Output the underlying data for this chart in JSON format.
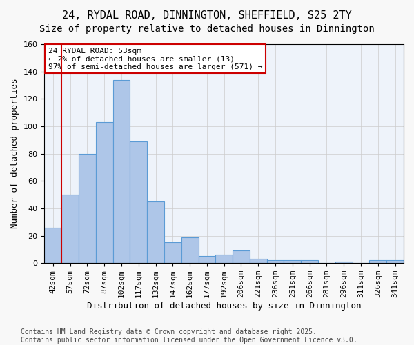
{
  "title_line1": "24, RYDAL ROAD, DINNINGTON, SHEFFIELD, S25 2TY",
  "title_line2": "Size of property relative to detached houses in Dinnington",
  "xlabel": "Distribution of detached houses by size in Dinnington",
  "ylabel": "Number of detached properties",
  "bar_values": [
    26,
    50,
    80,
    103,
    134,
    89,
    45,
    15,
    19,
    5,
    6,
    9,
    3,
    2,
    2,
    2,
    0,
    1,
    0,
    2,
    2
  ],
  "all_labels": [
    "42sqm",
    "57sqm",
    "72sqm",
    "87sqm",
    "102sqm",
    "117sqm",
    "132sqm",
    "147sqm",
    "162sqm",
    "177sqm",
    "192sqm",
    "206sqm",
    "221sqm",
    "236sqm",
    "251sqm",
    "266sqm",
    "281sqm",
    "296sqm",
    "311sqm",
    "326sqm",
    "341sqm"
  ],
  "bar_color": "#aec6e8",
  "bar_edge_color": "#5b9bd5",
  "vline_color": "#cc0000",
  "annotation_text": "24 RYDAL ROAD: 53sqm\n← 2% of detached houses are smaller (13)\n97% of semi-detached houses are larger (571) →",
  "annotation_box_color": "#ffffff",
  "annotation_box_edge": "#cc0000",
  "ylim": [
    0,
    160
  ],
  "yticks": [
    0,
    20,
    40,
    60,
    80,
    100,
    120,
    140,
    160
  ],
  "grid_color": "#cccccc",
  "bg_color": "#eef3fa",
  "fig_bg_color": "#f8f8f8",
  "footer_text": "Contains HM Land Registry data © Crown copyright and database right 2025.\nContains public sector information licensed under the Open Government Licence v3.0.",
  "title_fontsize": 11,
  "subtitle_fontsize": 10,
  "axis_label_fontsize": 9,
  "tick_fontsize": 8,
  "annotation_fontsize": 8,
  "footer_fontsize": 7
}
